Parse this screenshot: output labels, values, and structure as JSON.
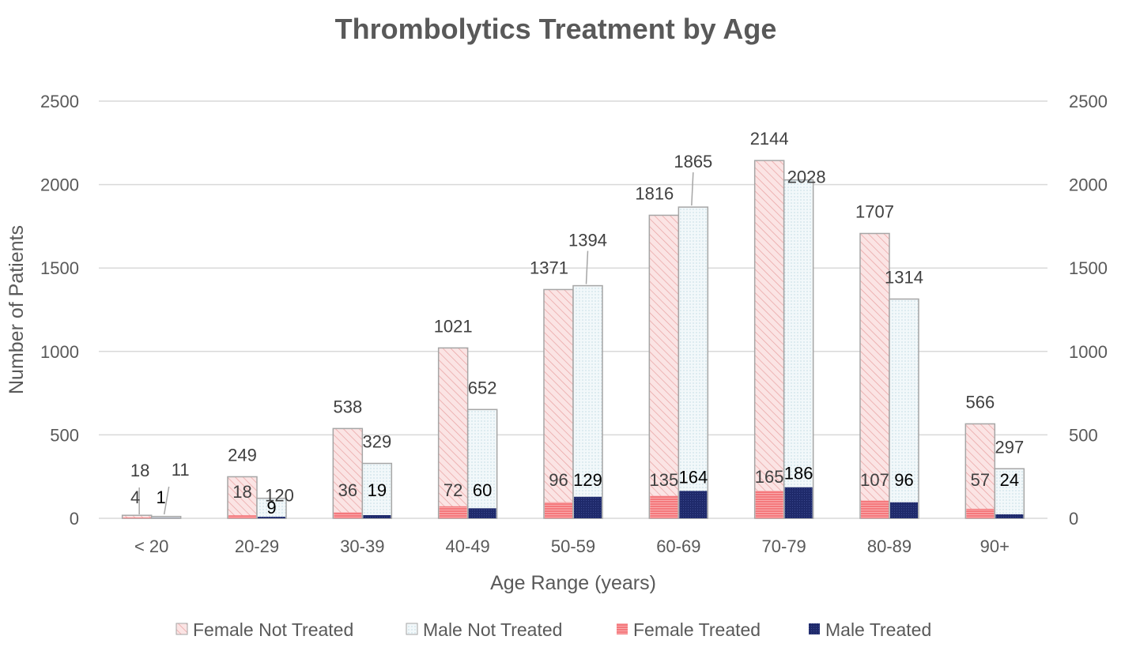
{
  "chart_data": {
    "type": "bar",
    "subtype": "overlapping-grouped-bar",
    "title": "Thrombolytics Treatment by Age",
    "xlabel": "Age Range (years)",
    "ylabel": "Number of Patients",
    "ylim": [
      0,
      2500
    ],
    "yticks": [
      0,
      500,
      1000,
      1500,
      2000,
      2500
    ],
    "secondary_yticks": [
      0,
      500,
      1000,
      1500,
      2000,
      2500
    ],
    "categories": [
      "< 20",
      "20-29",
      "30-39",
      "40-49",
      "50-59",
      "60-69",
      "70-79",
      "80-89",
      "90+"
    ],
    "series": [
      {
        "name": "Female Not Treated",
        "values": [
          18,
          249,
          538,
          1021,
          1371,
          1816,
          2144,
          1707,
          566
        ]
      },
      {
        "name": "Male Not Treated",
        "values": [
          11,
          120,
          329,
          652,
          1394,
          1865,
          2028,
          1314,
          297
        ]
      },
      {
        "name": "Female Treated",
        "values": [
          4,
          18,
          36,
          72,
          96,
          135,
          165,
          107,
          57
        ]
      },
      {
        "name": "Male Treated",
        "values": [
          1,
          9,
          19,
          60,
          129,
          164,
          186,
          96,
          24
        ]
      }
    ],
    "colors": {
      "female_not_treated_fill": "#fbe4e4",
      "female_not_treated_hatch": "#e8a0a0",
      "male_not_treated_fill": "#f2f8fa",
      "male_not_treated_dots": "#a9cbd6",
      "bar_outline": "#a6a6a6",
      "female_treated": "#f4787c",
      "male_treated": "#1f2a6b",
      "grid": "#d9d9d9"
    },
    "grid": true,
    "legend_position": "bottom"
  }
}
